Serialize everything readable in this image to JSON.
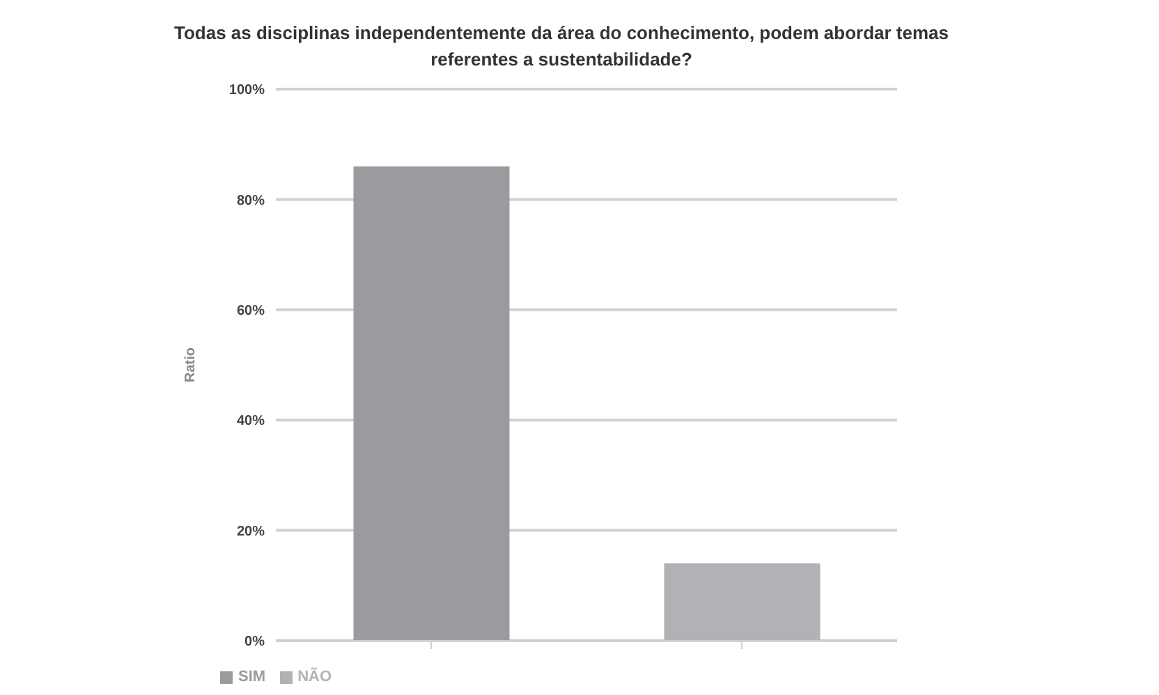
{
  "chart_data": {
    "type": "bar",
    "title": "Todas as disciplinas independentemente da área do conhecimento, podem abordar temas referentes a sustentabilidade?",
    "ylabel": "Ratio",
    "categories": [
      null,
      null
    ],
    "series": [
      {
        "name": "SIM",
        "color": "#9a9b9e",
        "values": [
          86,
          null
        ]
      },
      {
        "name": "NÃO",
        "color": "#b1b2b5",
        "values": [
          null,
          14
        ]
      }
    ],
    "stacked": true,
    "ylim": [
      0,
      100
    ],
    "yticks": [
      {
        "value": 0,
        "label": "0%"
      },
      {
        "value": 20,
        "label": "20%"
      },
      {
        "value": 40,
        "label": "40%"
      },
      {
        "value": 60,
        "label": "60%"
      },
      {
        "value": 80,
        "label": "80%"
      },
      {
        "value": 100,
        "label": "100%"
      }
    ],
    "grid": "y",
    "legend": "bottom left"
  }
}
